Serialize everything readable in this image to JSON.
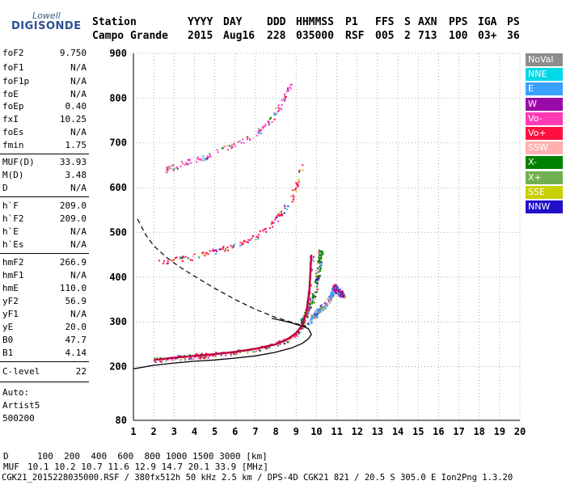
{
  "logo": {
    "line1": "Lowell",
    "line2": "DIGISONDE"
  },
  "header": {
    "labels": [
      "Station",
      "YYYY",
      "DAY",
      "DDD",
      "HHMMSS",
      "P1",
      "FFS",
      "S",
      "AXN",
      "PPS",
      "IGA",
      "PS"
    ],
    "values": [
      "Campo Grande",
      "2015",
      "Aug16",
      "228",
      "035000",
      "RSF",
      "005",
      "2",
      "713",
      "100",
      "03+",
      "36"
    ]
  },
  "params": [
    {
      "name": "foF2",
      "value": "9.750"
    },
    {
      "name": "foF1",
      "value": "N/A"
    },
    {
      "name": "foF1p",
      "value": "N/A"
    },
    {
      "name": "foE",
      "value": "N/A"
    },
    {
      "name": "foEp",
      "value": "0.40"
    },
    {
      "name": "fxI",
      "value": "10.25"
    },
    {
      "name": "foEs",
      "value": "N/A"
    },
    {
      "name": "fmin",
      "value": "1.75"
    },
    {
      "name": "MUF(D)",
      "value": "33.93"
    },
    {
      "name": "M(D)",
      "value": "3.48"
    },
    {
      "name": "D",
      "value": "N/A"
    },
    {
      "name": "h`F",
      "value": "209.0"
    },
    {
      "name": "h`F2",
      "value": "209.0"
    },
    {
      "name": "h`E",
      "value": "N/A"
    },
    {
      "name": "h`Es",
      "value": "N/A"
    },
    {
      "name": "hmF2",
      "value": "266.9"
    },
    {
      "name": "hmF1",
      "value": "N/A"
    },
    {
      "name": "hmE",
      "value": "110.0"
    },
    {
      "name": "yF2",
      "value": "56.9"
    },
    {
      "name": "yF1",
      "value": "N/A"
    },
    {
      "name": "yE",
      "value": "20.0"
    },
    {
      "name": "B0",
      "value": "47.7"
    },
    {
      "name": "B1",
      "value": "4.14"
    },
    {
      "name": "C-level",
      "value": "22"
    }
  ],
  "auto": {
    "line1": "Auto:",
    "line2": "Artist5",
    "line3": "500200"
  },
  "legend": [
    {
      "label": "NoVal",
      "color": "#8c8c8c"
    },
    {
      "label": "NNE",
      "color": "#00d8e8"
    },
    {
      "label": "E",
      "color": "#3aa0ff"
    },
    {
      "label": "W",
      "color": "#9a0aa8"
    },
    {
      "label": "Vo-",
      "color": "#ff3ab4"
    },
    {
      "label": "Vo+",
      "color": "#ff1040"
    },
    {
      "label": "SSW",
      "color": "#ffb0b0"
    },
    {
      "label": "X-",
      "color": "#008000"
    },
    {
      "label": "X+",
      "color": "#70b050"
    },
    {
      "label": "SSE",
      "color": "#c8d000"
    },
    {
      "label": "NNW",
      "color": "#2010c8"
    }
  ],
  "footer": {
    "d_label": "D",
    "d_values": "100  200  400  600  800 1000 1500 3000 [km]",
    "muf_label": "MUF",
    "muf_values": "10.1 10.2 10.7 11.6 12.9 14.7 20.1 33.9 [MHz]",
    "file_line": "CGK21_2015228035000.RSF / 380fx512h 50 kHz 2.5 km / DPS-4D CGK21 821 / 20.5 S 305.0 E Ion2Png 1.3.20"
  },
  "chart_data": {
    "type": "scatter",
    "title": "",
    "xlabel": "",
    "ylabel": "",
    "xlim": [
      1,
      20
    ],
    "ylim": [
      80,
      900
    ],
    "x_ticks": [
      1,
      2,
      3,
      4,
      5,
      6,
      7,
      8,
      9,
      10,
      11,
      12,
      13,
      14,
      15,
      16,
      17,
      18,
      19,
      20
    ],
    "y_ticks": [
      80,
      200,
      300,
      400,
      500,
      600,
      700,
      800,
      900
    ],
    "grid": true,
    "legend_position": "right",
    "profile_solid": {
      "x": [
        1.0,
        2.0,
        3.0,
        4.0,
        5.0,
        6.0,
        7.0,
        8.0,
        8.8,
        9.3,
        9.6,
        9.75,
        9.6,
        9.2,
        8.6,
        7.8
      ],
      "y": [
        195,
        203,
        208,
        212,
        215,
        219,
        224,
        232,
        242,
        252,
        262,
        272,
        285,
        292,
        300,
        308
      ]
    },
    "trace_virtual": {
      "x": [
        2.0,
        3.0,
        4.0,
        5.0,
        6.0,
        7.0,
        8.0,
        8.6,
        9.0,
        9.3,
        9.5,
        9.65,
        9.75
      ],
      "y": [
        215,
        220,
        224,
        228,
        233,
        240,
        250,
        262,
        275,
        292,
        320,
        370,
        450
      ]
    },
    "dashed_curve": {
      "x": [
        1.2,
        1.6,
        2.0,
        2.6,
        3.2,
        4.0,
        5.0,
        6.0,
        7.0,
        8.0,
        9.0,
        9.5
      ],
      "y": [
        530,
        495,
        470,
        445,
        425,
        402,
        375,
        350,
        328,
        310,
        296,
        290
      ]
    },
    "echo_traces": [
      {
        "series": "Vo+",
        "x": [
          2.2,
          3.0,
          4.0,
          5.0,
          6.0,
          7.0,
          7.8,
          8.4,
          8.8,
          9.1,
          9.3
        ],
        "y": [
          436,
          440,
          447,
          458,
          472,
          492,
          518,
          548,
          580,
          615,
          655
        ]
      },
      {
        "series": "Vo-",
        "x": [
          2.5,
          3.0,
          4.0,
          5.0,
          6.0,
          7.0,
          7.6,
          8.0,
          8.4,
          8.7
        ],
        "y": [
          640,
          648,
          663,
          678,
          698,
          722,
          745,
          770,
          800,
          835
        ]
      },
      {
        "series": "X-",
        "x": [
          9.2,
          9.5,
          9.8,
          10.0,
          10.1,
          10.2
        ],
        "y": [
          300,
          320,
          350,
          390,
          430,
          460
        ]
      },
      {
        "series": "E",
        "x": [
          9.6,
          10.0,
          10.4,
          10.8
        ],
        "y": [
          300,
          320,
          340,
          370
        ]
      },
      {
        "series": "W",
        "x": [
          10.8,
          11.0,
          11.3
        ],
        "y": [
          380,
          370,
          360
        ]
      }
    ]
  }
}
